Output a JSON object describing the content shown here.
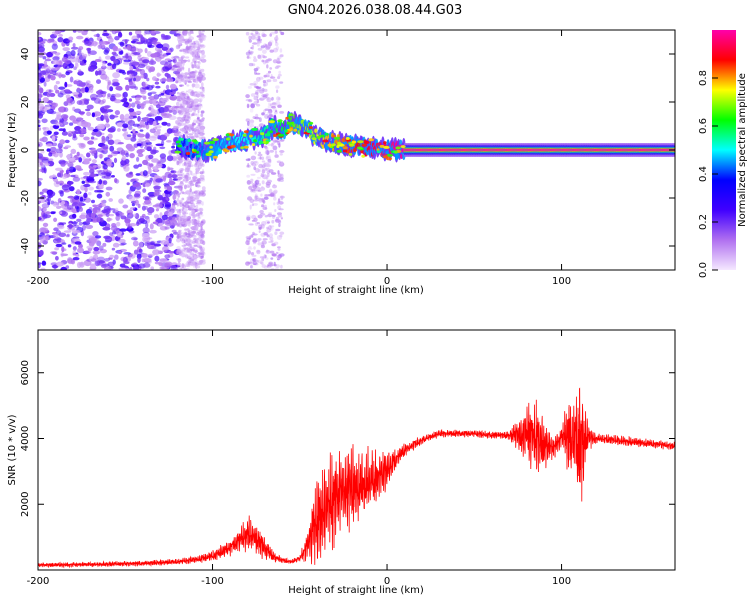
{
  "title": "GN04.2026.038.08.44.G03",
  "chart_data": [
    {
      "type": "heatmap",
      "name": "spectrogram",
      "xlabel": "Height of straight line (km)",
      "ylabel": "Frequency (Hz)",
      "xlim": [
        -200,
        165
      ],
      "ylim": [
        -50,
        50
      ],
      "xticks": [
        -200,
        -100,
        0,
        100
      ],
      "yticks": [
        40,
        20,
        0,
        -20,
        -40
      ],
      "colorbar": {
        "label": "Normalized spectral amplitude",
        "range": [
          0.0,
          1.0
        ],
        "ticks": [
          "0.0",
          "0.2",
          "0.4",
          "0.6",
          "0.8"
        ],
        "tick_values": [
          0.0,
          0.2,
          0.4,
          0.6,
          0.8
        ],
        "colormap": [
          "#f5e8ff",
          "#b070f0",
          "#4000ff",
          "#0000ff",
          "#00ffff",
          "#00ff00",
          "#ffff00",
          "#ff0000",
          "#ff00aa"
        ]
      },
      "signal_track": {
        "description": "carrier line frequency vs height",
        "x": [
          -120,
          -110,
          -100,
          -90,
          -80,
          -70,
          -65,
          -60,
          -55,
          -50,
          -45,
          -40,
          -30,
          -20,
          -10,
          0,
          10,
          50,
          100,
          165
        ],
        "freq": [
          2,
          0,
          0,
          3,
          4,
          6,
          10,
          8,
          12,
          10,
          8,
          5,
          3,
          2,
          1,
          0,
          0,
          0,
          0,
          0
        ],
        "amplitude": [
          0.3,
          0.4,
          0.45,
          0.5,
          0.5,
          0.55,
          0.6,
          0.6,
          0.65,
          0.7,
          0.7,
          0.75,
          0.8,
          0.85,
          0.9,
          0.95,
          1.0,
          1.0,
          1.0,
          1.0
        ]
      },
      "noise_region": {
        "x_range": [
          -200,
          -120
        ],
        "freq_range": [
          -50,
          50
        ],
        "note": "dense violet noise speckle"
      },
      "noise_band": {
        "x_range": [
          -80,
          -60
        ],
        "freq_range": [
          -50,
          50
        ],
        "note": "vertical band of faint noise"
      }
    },
    {
      "type": "line",
      "name": "snr",
      "xlabel": "Height of straight line (km)",
      "ylabel": "SNR (10 * v/v)",
      "xlim": [
        -200,
        165
      ],
      "ylim": [
        0,
        7300
      ],
      "xticks": [
        -200,
        -100,
        0,
        100
      ],
      "yticks": [
        2000,
        4000,
        6000
      ],
      "color": "#ff0000",
      "series": [
        {
          "name": "SNR",
          "x": [
            -200,
            -180,
            -160,
            -140,
            -120,
            -110,
            -100,
            -95,
            -90,
            -85,
            -80,
            -75,
            -70,
            -65,
            -60,
            -55,
            -50,
            -45,
            -40,
            -35,
            -30,
            -25,
            -20,
            -15,
            -10,
            -5,
            0,
            5,
            10,
            15,
            20,
            25,
            30,
            40,
            50,
            60,
            70,
            75,
            80,
            85,
            90,
            95,
            100,
            105,
            110,
            115,
            120,
            130,
            140,
            150,
            160,
            165
          ],
          "y": [
            150,
            160,
            180,
            200,
            250,
            320,
            420,
            550,
            700,
            900,
            1100,
            1000,
            650,
            400,
            300,
            250,
            350,
            800,
            1600,
            1900,
            2200,
            2350,
            2550,
            2600,
            2700,
            2800,
            3050,
            3350,
            3650,
            3800,
            3950,
            4050,
            4150,
            4150,
            4150,
            4100,
            4100,
            4100,
            4150,
            4000,
            3800,
            3700,
            4100,
            4000,
            3900,
            4050,
            4000,
            3950,
            3900,
            3850,
            3800,
            3750
          ],
          "envelope": {
            "x": [
              -200,
              -120,
              -100,
              -85,
              -80,
              -75,
              -70,
              -65,
              -60,
              -55,
              -50,
              -45,
              -40,
              -35,
              -30,
              -25,
              -20,
              -15,
              -10,
              -5,
              0,
              5,
              10,
              20,
              30,
              50,
              70,
              78,
              82,
              86,
              90,
              95,
              100,
              104,
              108,
              110,
              112,
              115,
              120,
              140,
              165
            ],
            "amp": [
              60,
              80,
              150,
              300,
              500,
              500,
              350,
              150,
              80,
              60,
              100,
              600,
              1500,
              1300,
              1400,
              1200,
              1300,
              1100,
              900,
              700,
              500,
              300,
              200,
              120,
              100,
              100,
              120,
              700,
              900,
              1100,
              700,
              400,
              300,
              1200,
              1500,
              2300,
              1500,
              400,
              150,
              130,
              120
            ]
          }
        }
      ]
    }
  ]
}
